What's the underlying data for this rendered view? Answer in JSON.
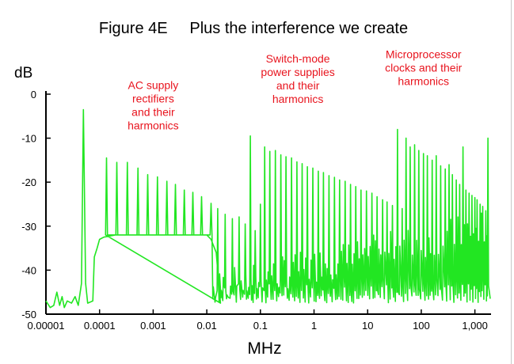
{
  "chart_data": {
    "type": "line",
    "title": "Figure 4E     Plus the interference we create",
    "ylabel": "dB",
    "xlabel": "MHz",
    "x_scale": "log",
    "xlim": [
      1e-05,
      2000
    ],
    "ylim": [
      -50,
      0
    ],
    "x_ticks": [
      {
        "value": 1e-05,
        "label": "0.00001"
      },
      {
        "value": 0.0001,
        "label": "0.0001"
      },
      {
        "value": 0.001,
        "label": "0.001"
      },
      {
        "value": 0.01,
        "label": "0.01"
      },
      {
        "value": 0.1,
        "label": "0.1"
      },
      {
        "value": 1,
        "label": "1"
      },
      {
        "value": 10,
        "label": "10"
      },
      {
        "value": 100,
        "label": "100"
      },
      {
        "value": 1000,
        "label": "1,000"
      }
    ],
    "y_ticks": [
      {
        "value": 0,
        "label": "0"
      },
      {
        "value": -10,
        "label": "-10"
      },
      {
        "value": -20,
        "label": "-20"
      },
      {
        "value": -30,
        "label": "-30"
      },
      {
        "value": -40,
        "label": "-40"
      },
      {
        "value": -50,
        "label": "-50"
      }
    ],
    "grid": false,
    "line_color": "#22e622",
    "annotation_color": "#e8141e",
    "annotations": [
      {
        "lines": [
          "AC supply",
          "rectifiers",
          "and their",
          "harmonics"
        ],
        "x": 0.001,
        "y": -1
      },
      {
        "lines": [
          "Switch-mode",
          "power supplies",
          "and their",
          "harmonics"
        ],
        "x": 0.5,
        "y": 5
      },
      {
        "lines": [
          "Microprocessor",
          "clocks and their",
          "harmonics"
        ],
        "x": 110,
        "y": 6
      }
    ],
    "baseline": [
      [
        1e-05,
        -47
      ],
      [
        1.2e-05,
        -48.5
      ],
      [
        1.4e-05,
        -48
      ],
      [
        1.6e-05,
        -45
      ],
      [
        1.8e-05,
        -48
      ],
      [
        2e-05,
        -46
      ],
      [
        2.2e-05,
        -48.5
      ],
      [
        2.5e-05,
        -47
      ],
      [
        3e-05,
        -47.5
      ],
      [
        3.5e-05,
        -46
      ],
      [
        4e-05,
        -48
      ],
      [
        4.6e-05,
        -43
      ],
      [
        5e-05,
        -3.5
      ],
      [
        5.5e-05,
        -43
      ],
      [
        6e-05,
        -47.5
      ],
      [
        7.5e-05,
        -47
      ],
      [
        8e-05,
        -37
      ],
      [
        9e-05,
        -35
      ],
      [
        0.0001,
        -33
      ],
      [
        0.00012,
        -32.5
      ],
      [
        0.0002,
        -32
      ],
      [
        0.0005,
        -32
      ],
      [
        0.001,
        -32
      ],
      [
        0.002,
        -32
      ],
      [
        0.005,
        -32
      ],
      [
        0.01,
        -32
      ],
      [
        0.012,
        -33
      ],
      [
        0.015,
        -36
      ],
      [
        0.018,
        -47.5
      ]
    ],
    "series": [
      {
        "values": [
          [
            0.000135,
            -14.5
          ],
          [
            0.00021,
            -15.5
          ],
          [
            0.00033,
            -15.5
          ],
          [
            0.00052,
            -16.8
          ],
          [
            0.00079,
            -18.3
          ],
          [
            0.0012,
            -18.8
          ],
          [
            0.0018,
            -19.8
          ],
          [
            0.0026,
            -20.5
          ],
          [
            0.0038,
            -21.8
          ],
          [
            0.0055,
            -22.3
          ],
          [
            0.008,
            -23.3
          ],
          [
            0.012,
            -24.8
          ],
          [
            0.016,
            -26
          ],
          [
            0.022,
            -27.3
          ]
        ]
      },
      {
        "values": [
          [
            0.03,
            -28.3
          ],
          [
            0.04,
            -27.9
          ],
          [
            0.052,
            -29.5
          ],
          [
            0.065,
            -9.5
          ],
          [
            0.08,
            -31
          ],
          [
            0.1,
            -25
          ],
          [
            0.12,
            -12
          ],
          [
            0.15,
            -13
          ],
          [
            0.19,
            -12.8
          ],
          [
            0.24,
            -13.8
          ],
          [
            0.3,
            -14.2
          ],
          [
            0.38,
            -14.5
          ],
          [
            0.48,
            -15.4
          ],
          [
            0.6,
            -15.8
          ],
          [
            0.75,
            -16.5
          ],
          [
            0.95,
            -16.8
          ],
          [
            1.2,
            -17.5
          ],
          [
            1.5,
            -17.8
          ],
          [
            1.9,
            -18.5
          ],
          [
            2.4,
            -18.9
          ],
          [
            3,
            -19.5
          ],
          [
            3.8,
            -19.8
          ],
          [
            4.8,
            -20.5
          ],
          [
            6,
            -21
          ],
          [
            7.5,
            -21.8
          ],
          [
            9.5,
            -22
          ],
          [
            12,
            -22.5
          ],
          [
            15,
            -23.3
          ]
        ]
      },
      {
        "values": [
          [
            19,
            -24
          ],
          [
            23,
            -24.5
          ],
          [
            29,
            -25.3
          ],
          [
            36,
            -8
          ],
          [
            44,
            -26
          ],
          [
            52,
            -10
          ],
          [
            62,
            -12
          ],
          [
            75,
            -11.5
          ],
          [
            90,
            -12.8
          ],
          [
            110,
            -13.5
          ],
          [
            130,
            -14
          ],
          [
            160,
            -15
          ],
          [
            190,
            -14
          ],
          [
            230,
            -16.3
          ],
          [
            280,
            -17
          ],
          [
            330,
            -16
          ],
          [
            380,
            -18.3
          ],
          [
            450,
            -19.5
          ],
          [
            520,
            -20.5
          ],
          [
            600,
            -12
          ],
          [
            680,
            -21.8
          ],
          [
            780,
            -22.5
          ],
          [
            880,
            -23
          ],
          [
            1000,
            -23.5
          ],
          [
            1100,
            -24
          ],
          [
            1250,
            -25
          ],
          [
            1400,
            -25.5
          ],
          [
            1600,
            -26.5
          ],
          [
            1750,
            -10
          ]
        ]
      }
    ]
  }
}
